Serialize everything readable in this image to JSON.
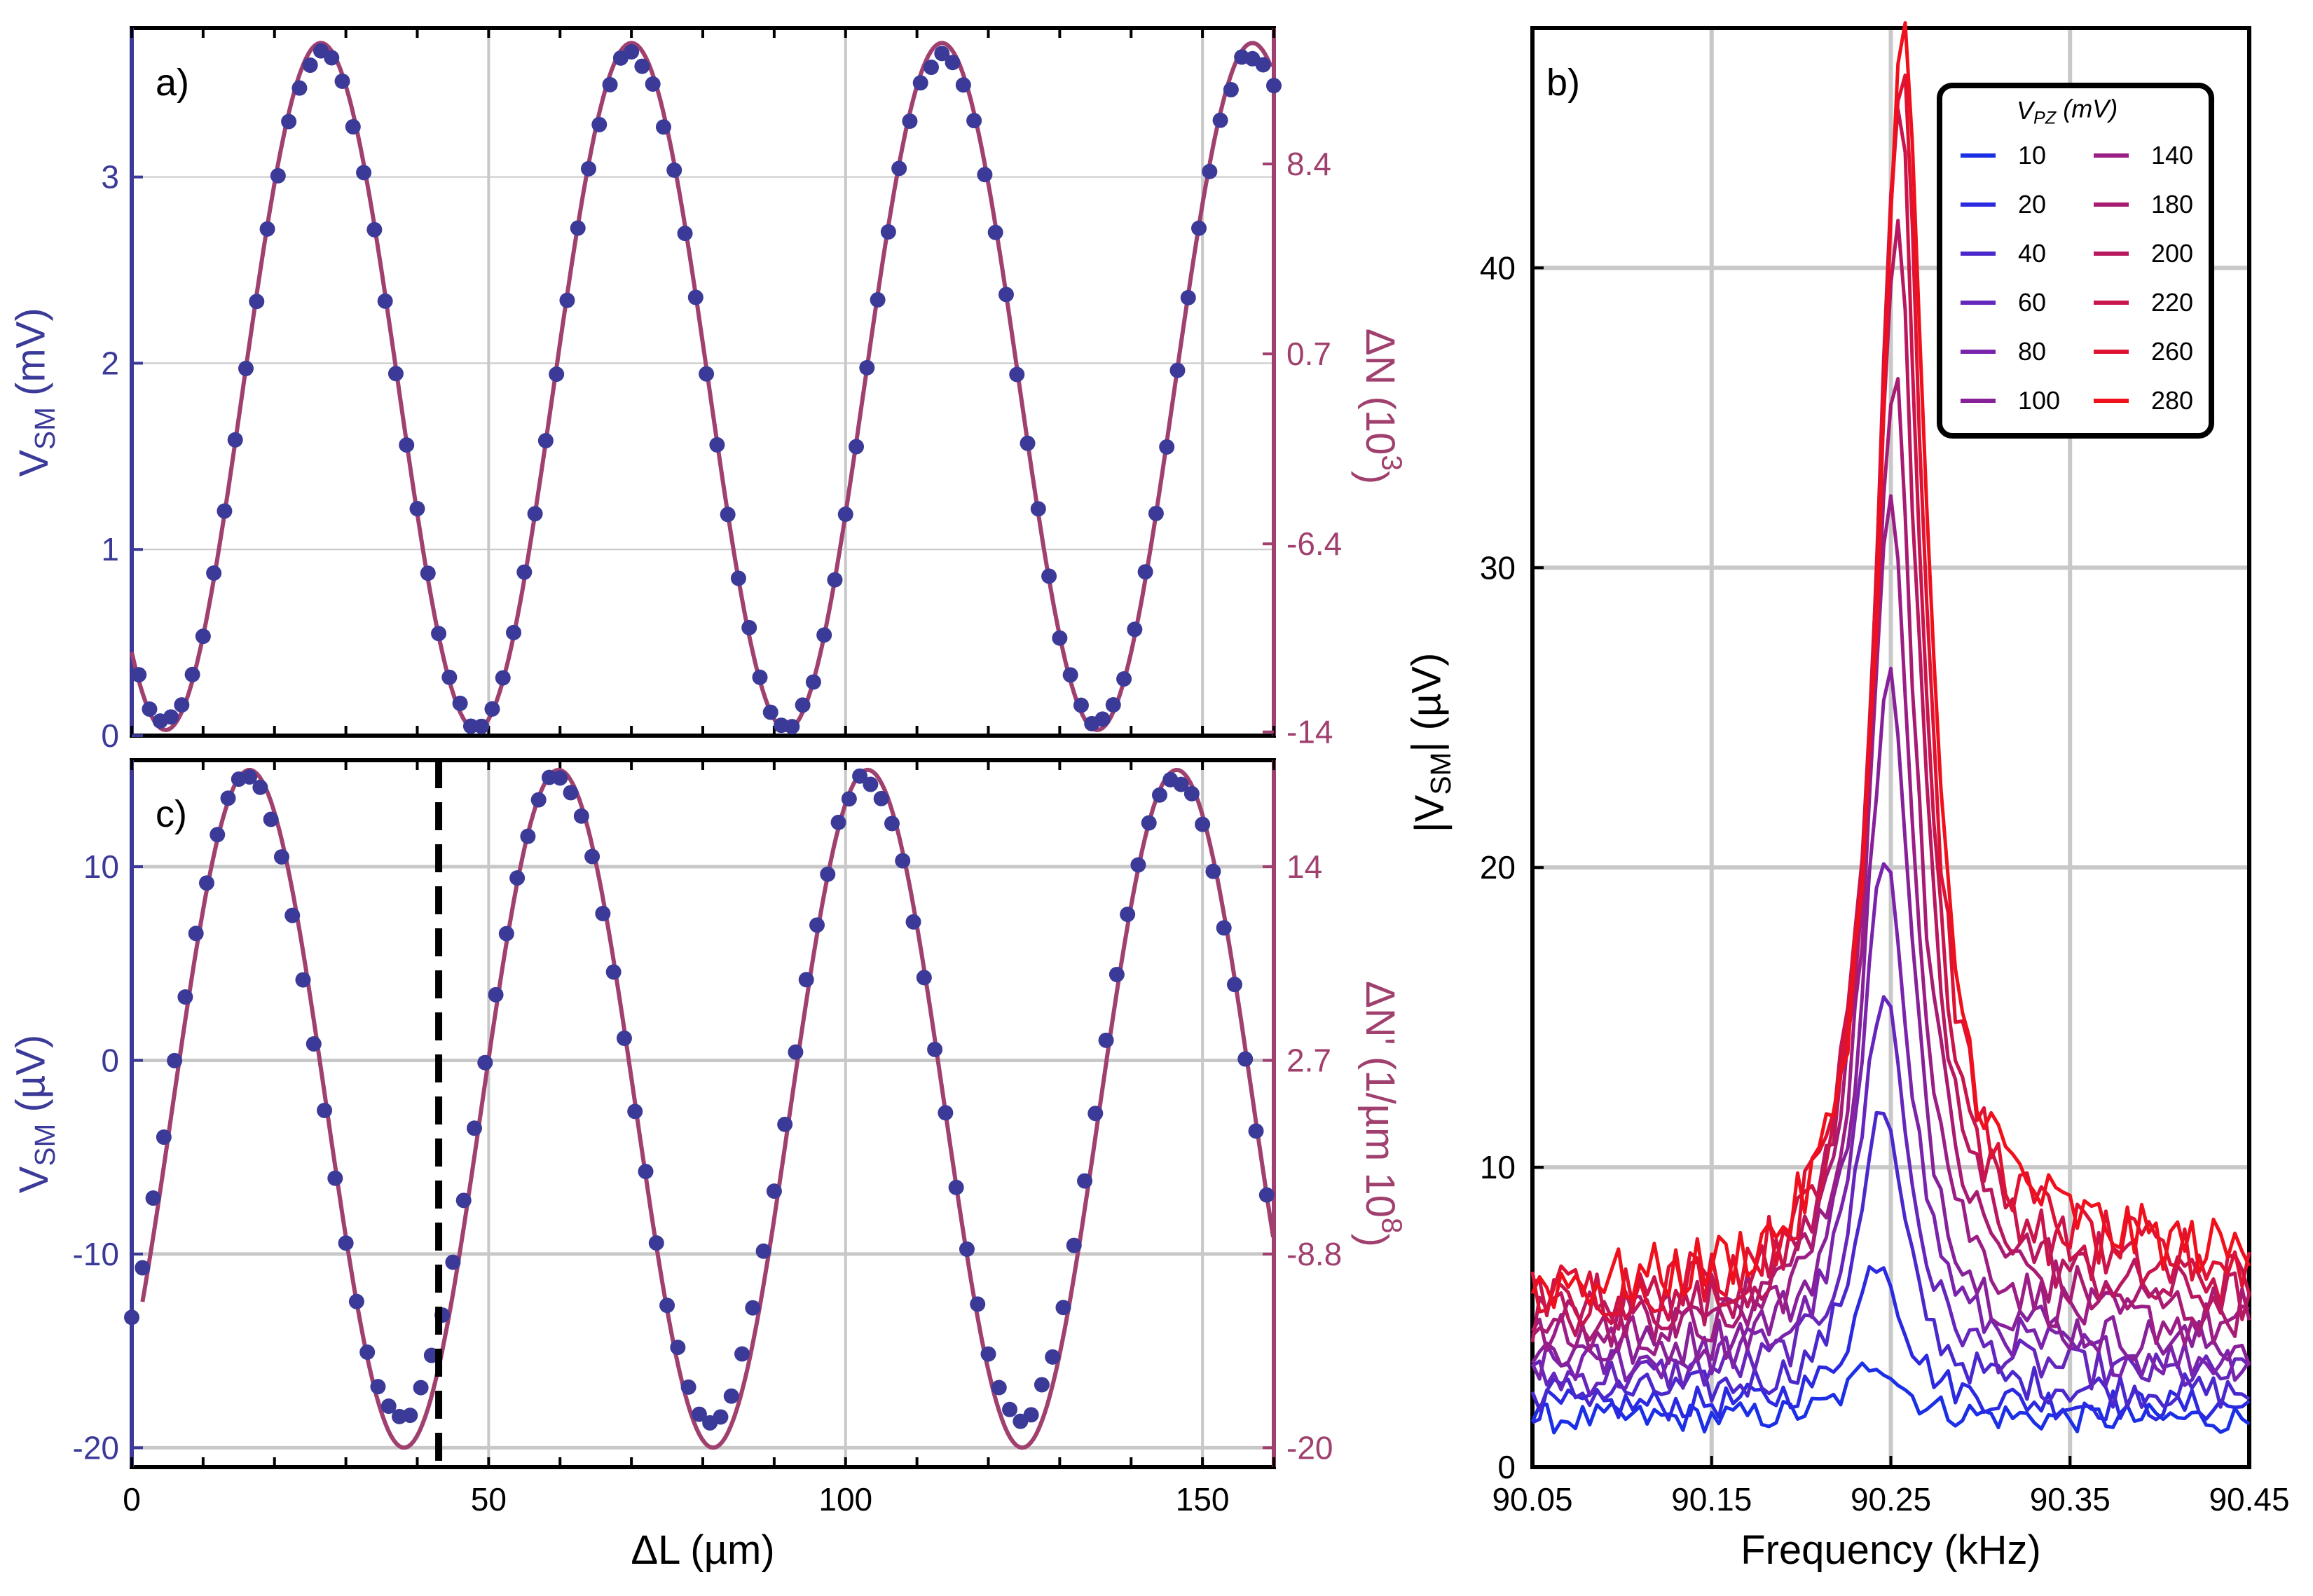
{
  "chart_data": [
    {
      "panel": "a)",
      "type": "scatter",
      "xlim": [
        0,
        160
      ],
      "ylim": [
        0,
        3.8
      ],
      "x_ticks": [
        "0",
        "50",
        "100",
        "150"
      ],
      "y_ticks": [
        "0",
        "1",
        "2",
        "3"
      ],
      "y_ticks_right": [
        "-14",
        "-6.4",
        "0.7",
        "8.4"
      ],
      "ylabel_left": "V<sub>SM</sub> (mV)",
      "ylabel_right": "ΔN (10<sup>3</sup>)",
      "grid": true,
      "colors": {
        "dots": "#3b3a98",
        "fit": "#a0406e",
        "left_axis": "#3b3a98",
        "right_axis": "#a0406e"
      },
      "fit_model": {
        "kind": "cosine",
        "offset": 1.875,
        "amplitude": 1.845,
        "period": 43.5,
        "phase_x": 26.5
      },
      "dots": {
        "x_start": 1,
        "x_step": 1.5,
        "count": 107,
        "offset": 1.86,
        "amplitude": 1.8,
        "period": 43.5,
        "phase_x": 26.5
      }
    },
    {
      "panel": "c)",
      "type": "scatter",
      "xlim": [
        0,
        160
      ],
      "ylim": [
        -21,
        15.5
      ],
      "x_ticks": [
        "0",
        "50",
        "100",
        "150"
      ],
      "y_ticks": [
        "-20",
        "-10",
        "0",
        "10"
      ],
      "y_ticks_right": [
        "-20",
        "-8.8",
        "2.7",
        "14"
      ],
      "xlabel": "ΔL (µm)",
      "ylabel_left": "V<sub>SM</sub> (µV)",
      "ylabel_right": "ΔN' (1/µm 10<sup>8</sup>)",
      "grid": true,
      "marker_x": 43,
      "colors": {
        "dots": "#3b3a98",
        "fit": "#a0406e",
        "marker": "#000000"
      },
      "fit_model": {
        "kind": "cosine",
        "offset": -2.5,
        "amplitude": 17.5,
        "period": 43.3,
        "phase_x": 16.5,
        "x_start": 1.5
      },
      "dots": {
        "segments": [
          {
            "x_start": 0,
            "x_end": 42,
            "phase_x": 16,
            "period": 43,
            "amplitude": 16.5,
            "offset": -2
          },
          {
            "x_start": 43.5,
            "x_end": 160,
            "phase_x": 59.5,
            "period": 43.3,
            "amplitude": 16.5,
            "offset": -2
          }
        ],
        "x_step": 1.5
      }
    },
    {
      "panel": "b)",
      "type": "line",
      "xlim": [
        90.05,
        90.45
      ],
      "ylim": [
        0,
        48
      ],
      "x_ticks": [
        "90.05",
        "90.15",
        "90.25",
        "90.35",
        "90.45"
      ],
      "y_ticks": [
        "0",
        "10",
        "20",
        "30",
        "40"
      ],
      "xlabel": "Frequency (kHz)",
      "ylabel": "|V<sub>SM</sub>| (µV)",
      "grid": true,
      "legend_title": "V<sub>PZ</sub> (mV)",
      "legend_placement": "top-right",
      "series": [
        {
          "name": "10",
          "color": "#1a2fe6",
          "peak": 3.6,
          "base": 1.6
        },
        {
          "name": "20",
          "color": "#2b2ae0",
          "peak": 7.0,
          "base": 2.0
        },
        {
          "name": "40",
          "color": "#4a28cc",
          "peak": 11.8,
          "base": 2.4
        },
        {
          "name": "60",
          "color": "#6526bc",
          "peak": 15.8,
          "base": 2.9
        },
        {
          "name": "80",
          "color": "#7a24ac",
          "peak": 20.4,
          "base": 3.3
        },
        {
          "name": "100",
          "color": "#87219a",
          "peak": 26.0,
          "base": 3.7
        },
        {
          "name": "140",
          "color": "#9b1e86",
          "peak": 31.5,
          "base": 4.1
        },
        {
          "name": "180",
          "color": "#a81b72",
          "peak": 35.8,
          "base": 4.5
        },
        {
          "name": "200",
          "color": "#b81860",
          "peak": 40.5,
          "base": 4.8
        },
        {
          "name": "220",
          "color": "#c8154c",
          "peak": 44.2,
          "base": 5.2
        },
        {
          "name": "260",
          "color": "#de1232",
          "peak": 46.3,
          "base": 5.6
        },
        {
          "name": "280",
          "color": "#f0101c",
          "peak": 46.9,
          "base": 5.9
        }
      ],
      "center_frequency": 90.242,
      "linewidth": 0.016
    }
  ]
}
